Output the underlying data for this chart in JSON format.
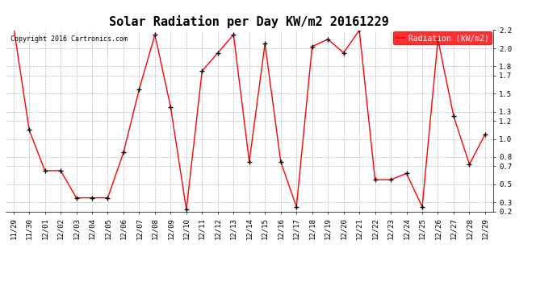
{
  "title": "Solar Radiation per Day KW/m2 20161229",
  "copyright": "Copyright 2016 Cartronics.com",
  "legend_label": "Radiation (kW/m2)",
  "dates": [
    "11/29",
    "11/30",
    "12/01",
    "12/02",
    "12/03",
    "12/04",
    "12/05",
    "12/06",
    "12/07",
    "12/08",
    "12/09",
    "12/10",
    "12/11",
    "12/12",
    "12/13",
    "12/14",
    "12/15",
    "12/16",
    "12/17",
    "12/18",
    "12/19",
    "12/20",
    "12/21",
    "12/22",
    "12/23",
    "12/24",
    "12/25",
    "12/26",
    "12/27",
    "12/28",
    "12/29"
  ],
  "values": [
    2.25,
    1.1,
    0.65,
    0.65,
    0.35,
    0.35,
    0.35,
    0.85,
    1.55,
    2.15,
    1.35,
    0.22,
    1.75,
    1.95,
    2.15,
    0.75,
    2.05,
    0.75,
    0.25,
    2.02,
    2.1,
    1.95,
    2.2,
    0.55,
    0.55,
    0.62,
    0.25,
    2.1,
    1.25,
    0.72,
    1.05
  ],
  "ylim": [
    0.2,
    2.2
  ],
  "yticks": [
    0.2,
    0.3,
    0.5,
    0.7,
    0.8,
    1.0,
    1.2,
    1.3,
    1.5,
    1.7,
    1.8,
    2.0,
    2.2
  ],
  "line_color": "red",
  "marker_color": "black",
  "bg_color": "white",
  "grid_color": "#bbbbbb",
  "legend_bg": "red",
  "legend_text_color": "white",
  "title_fontsize": 11,
  "tick_fontsize": 6.5,
  "copyright_fontsize": 6,
  "legend_fontsize": 7
}
